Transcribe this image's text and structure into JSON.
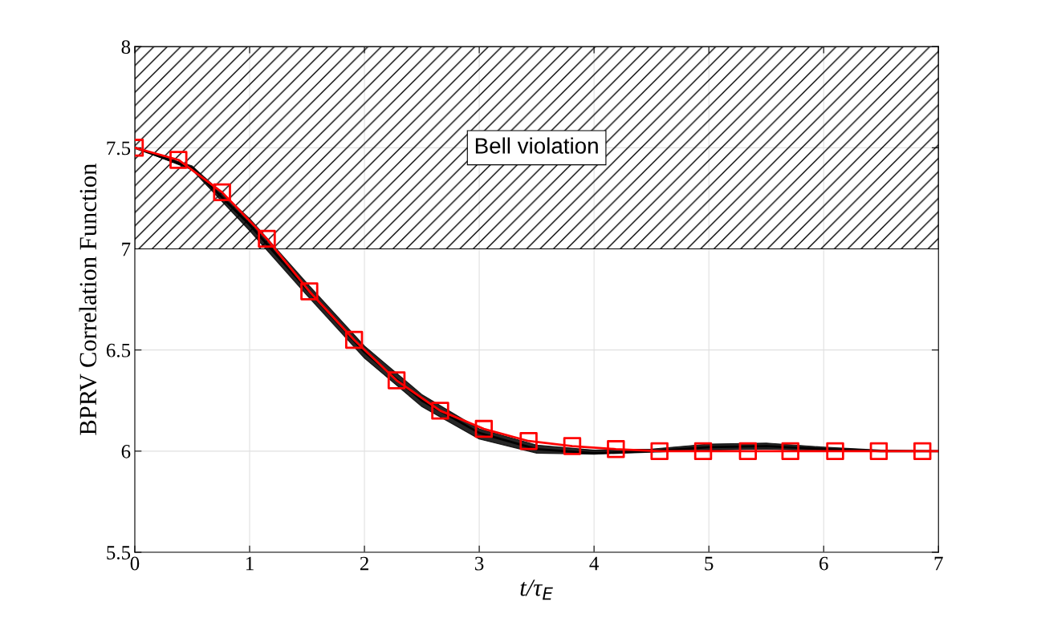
{
  "chart_data": {
    "type": "line",
    "xlabel": "t/τ$_{E}$",
    "ylabel": "BPRV Correlation Function",
    "xlim": [
      0,
      7
    ],
    "xticks": [
      0,
      1,
      2,
      3,
      4,
      5,
      6,
      7
    ],
    "ylim": [
      5.5,
      8
    ],
    "yticks": [
      5.5,
      6,
      6.5,
      7,
      7.5,
      8
    ],
    "grid": true,
    "bands": [
      {
        "axis": "y",
        "from": 7,
        "to": 8,
        "label": "Bell violation",
        "color": "#000000"
      }
    ],
    "series": [
      {
        "color": "#000000",
        "x": [
          0,
          0.5,
          1,
          1.5,
          2,
          2.5,
          3,
          3.5,
          4,
          4.5,
          5,
          5.5,
          6,
          6.5,
          7
        ],
        "values": [
          7.5,
          7.4,
          7.12,
          6.8,
          6.49,
          6.25,
          6.09,
          6.01,
          5.99,
          6.0,
          6.02,
          6.025,
          6.01,
          6.0,
          6.0
        ],
        "lower": [
          7.5,
          7.39,
          7.09,
          6.77,
          6.46,
          6.22,
          6.06,
          5.99,
          5.985,
          5.995,
          6.005,
          6.01,
          6.0,
          6.0,
          6.0
        ],
        "upper": [
          7.5,
          7.41,
          7.15,
          6.83,
          6.52,
          6.28,
          6.11,
          6.03,
          6.005,
          6.01,
          6.035,
          6.04,
          6.02,
          6.005,
          6.0
        ]
      },
      {
        "type": "line",
        "color": "#ff0000",
        "marker": "none",
        "x": [
          0,
          0.38,
          0.76,
          1.15,
          1.52,
          1.91,
          2.28,
          2.66,
          3.04,
          3.43,
          3.81,
          4.19,
          4.57,
          4.95,
          5.34,
          5.71,
          6.1,
          6.48,
          6.86,
          7
        ],
        "values": [
          7.5,
          7.44,
          7.28,
          7.05,
          6.79,
          6.55,
          6.35,
          6.2,
          6.11,
          6.05,
          6.025,
          6.01,
          6.0,
          6.0,
          6.0,
          6.0,
          6.0,
          6.0,
          6.0,
          6.0
        ]
      },
      {
        "type": "scatter",
        "color": "#ff0000",
        "marker": "square",
        "x": [
          0,
          0.38,
          0.76,
          1.15,
          1.52,
          1.91,
          2.28,
          2.66,
          3.04,
          3.43,
          3.81,
          4.19,
          4.57,
          4.95,
          5.34,
          5.71,
          6.1,
          6.48,
          6.86
        ],
        "values": [
          7.5,
          7.44,
          7.28,
          7.05,
          6.79,
          6.55,
          6.35,
          6.2,
          6.11,
          6.05,
          6.025,
          6.01,
          6.0,
          6.0,
          6.0,
          6.0,
          6.0,
          6.0,
          6.0
        ]
      }
    ]
  }
}
